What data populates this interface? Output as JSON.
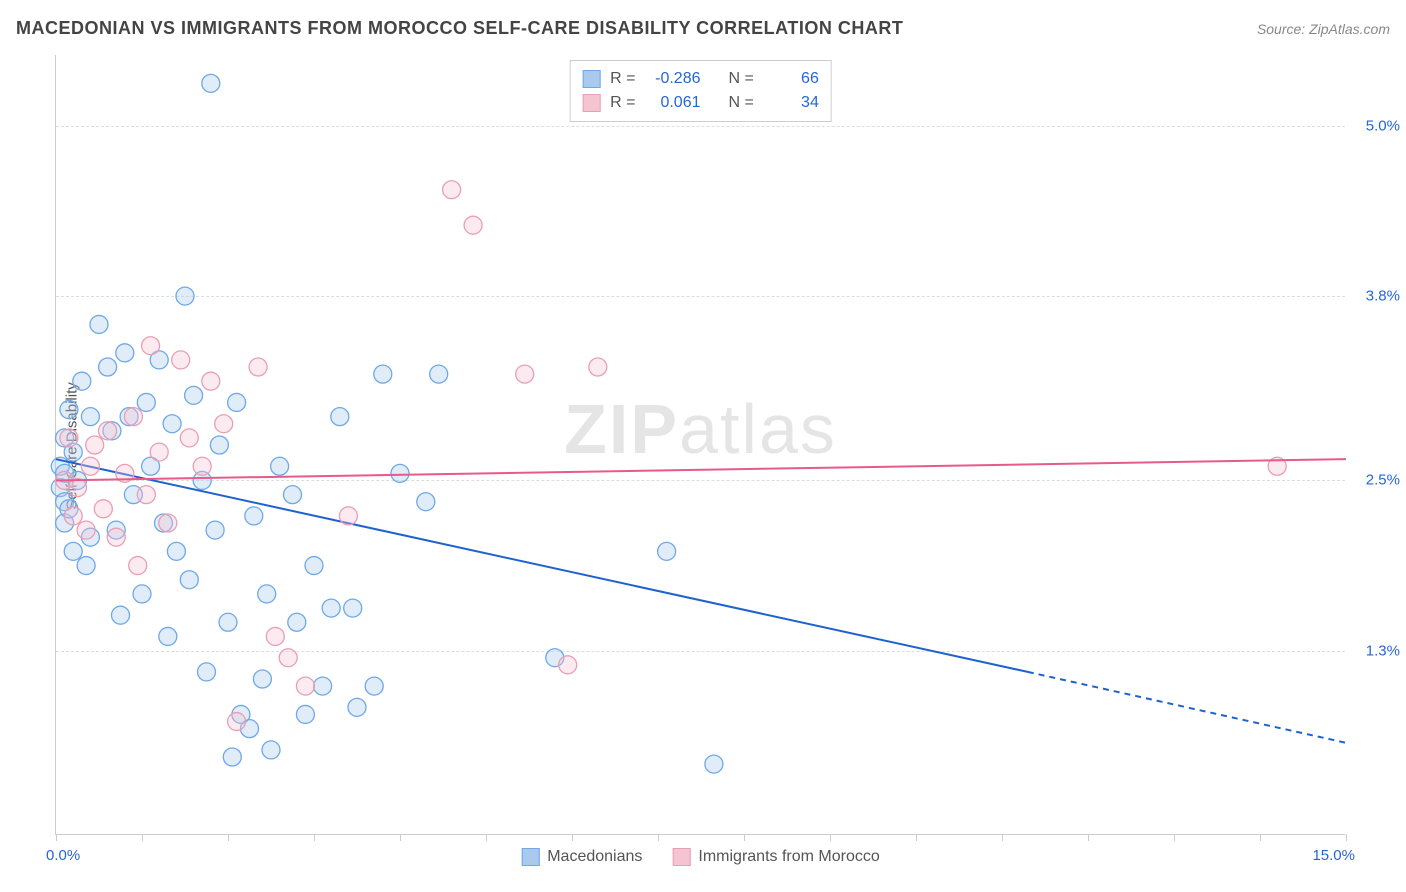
{
  "title": "MACEDONIAN VS IMMIGRANTS FROM MOROCCO SELF-CARE DISABILITY CORRELATION CHART",
  "source_label": "Source: ",
  "source_name": "ZipAtlas.com",
  "watermark": {
    "bold": "ZIP",
    "light": "atlas"
  },
  "ylabel": "Self-Care Disability",
  "chart": {
    "type": "scatter",
    "x_domain": [
      0.0,
      15.0
    ],
    "y_domain": [
      0.0,
      5.5
    ],
    "x_ticks_minor": [
      0,
      1,
      2,
      3,
      4,
      5,
      6,
      7,
      8,
      9,
      10,
      11,
      12,
      13,
      14,
      15
    ],
    "x_ticks_major_labels": [
      {
        "pos": 0.0,
        "label": "0.0%"
      },
      {
        "pos": 15.0,
        "label": "15.0%"
      }
    ],
    "y_gridlines": [
      1.3,
      2.5,
      3.8,
      5.0
    ],
    "y_tick_labels": [
      {
        "pos": 1.3,
        "label": "1.3%"
      },
      {
        "pos": 2.5,
        "label": "2.5%"
      },
      {
        "pos": 3.8,
        "label": "3.8%"
      },
      {
        "pos": 5.0,
        "label": "5.0%"
      }
    ],
    "marker_radius": 9,
    "marker_stroke_width": 1.3,
    "marker_fill_opacity": 0.35,
    "line_width": 2,
    "background_color": "#ffffff",
    "grid_color": "#dddddd",
    "axis_color": "#cccccc",
    "tick_label_color": "#2566d8",
    "label_fontsize": 15
  },
  "series": [
    {
      "name": "Macedonians",
      "color_stroke": "#6ea8e8",
      "color_fill": "#a9c9ef",
      "line_color": "#1e62d0",
      "R": "-0.286",
      "N": "66",
      "trend": {
        "x1": 0.0,
        "y1": 2.65,
        "x2_solid": 11.3,
        "y2_solid": 1.15,
        "x2": 15.0,
        "y2": 0.65
      },
      "points": [
        [
          0.05,
          2.45
        ],
        [
          0.05,
          2.6
        ],
        [
          0.1,
          2.8
        ],
        [
          0.1,
          2.55
        ],
        [
          0.1,
          2.35
        ],
        [
          0.1,
          2.2
        ],
        [
          0.15,
          3.0
        ],
        [
          0.15,
          2.3
        ],
        [
          0.2,
          2.7
        ],
        [
          0.2,
          2.0
        ],
        [
          0.25,
          2.5
        ],
        [
          0.3,
          3.2
        ],
        [
          0.35,
          1.9
        ],
        [
          0.4,
          2.1
        ],
        [
          0.4,
          2.95
        ],
        [
          0.5,
          3.6
        ],
        [
          0.6,
          3.3
        ],
        [
          0.65,
          2.85
        ],
        [
          0.7,
          2.15
        ],
        [
          0.75,
          1.55
        ],
        [
          0.8,
          3.4
        ],
        [
          0.85,
          2.95
        ],
        [
          0.9,
          2.4
        ],
        [
          1.0,
          1.7
        ],
        [
          1.05,
          3.05
        ],
        [
          1.1,
          2.6
        ],
        [
          1.2,
          3.35
        ],
        [
          1.25,
          2.2
        ],
        [
          1.3,
          1.4
        ],
        [
          1.35,
          2.9
        ],
        [
          1.4,
          2.0
        ],
        [
          1.5,
          3.8
        ],
        [
          1.55,
          1.8
        ],
        [
          1.6,
          3.1
        ],
        [
          1.7,
          2.5
        ],
        [
          1.75,
          1.15
        ],
        [
          1.8,
          5.3
        ],
        [
          1.85,
          2.15
        ],
        [
          1.9,
          2.75
        ],
        [
          2.0,
          1.5
        ],
        [
          2.05,
          0.55
        ],
        [
          2.1,
          3.05
        ],
        [
          2.15,
          0.85
        ],
        [
          2.25,
          0.75
        ],
        [
          2.3,
          2.25
        ],
        [
          2.4,
          1.1
        ],
        [
          2.45,
          1.7
        ],
        [
          2.5,
          0.6
        ],
        [
          2.6,
          2.6
        ],
        [
          2.75,
          2.4
        ],
        [
          2.8,
          1.5
        ],
        [
          2.9,
          0.85
        ],
        [
          3.0,
          1.9
        ],
        [
          3.1,
          1.05
        ],
        [
          3.2,
          1.6
        ],
        [
          3.3,
          2.95
        ],
        [
          3.45,
          1.6
        ],
        [
          3.5,
          0.9
        ],
        [
          3.7,
          1.05
        ],
        [
          3.8,
          3.25
        ],
        [
          4.0,
          2.55
        ],
        [
          4.3,
          2.35
        ],
        [
          4.45,
          3.25
        ],
        [
          7.1,
          2.0
        ],
        [
          7.65,
          0.5
        ],
        [
          5.8,
          1.25
        ]
      ]
    },
    {
      "name": "Immigrants from Morocco",
      "color_stroke": "#e89fb4",
      "color_fill": "#f4c4d2",
      "line_color": "#e75a8c",
      "R": "0.061",
      "N": "34",
      "trend": {
        "x1": 0.0,
        "y1": 2.5,
        "x2_solid": 15.0,
        "y2_solid": 2.65,
        "x2": 15.0,
        "y2": 2.65
      },
      "points": [
        [
          0.1,
          2.5
        ],
        [
          0.15,
          2.8
        ],
        [
          0.2,
          2.25
        ],
        [
          0.25,
          2.45
        ],
        [
          0.35,
          2.15
        ],
        [
          0.4,
          2.6
        ],
        [
          0.45,
          2.75
        ],
        [
          0.55,
          2.3
        ],
        [
          0.6,
          2.85
        ],
        [
          0.7,
          2.1
        ],
        [
          0.8,
          2.55
        ],
        [
          0.9,
          2.95
        ],
        [
          0.95,
          1.9
        ],
        [
          1.05,
          2.4
        ],
        [
          1.1,
          3.45
        ],
        [
          1.2,
          2.7
        ],
        [
          1.3,
          2.2
        ],
        [
          1.45,
          3.35
        ],
        [
          1.55,
          2.8
        ],
        [
          1.7,
          2.6
        ],
        [
          1.8,
          3.2
        ],
        [
          1.95,
          2.9
        ],
        [
          2.1,
          0.8
        ],
        [
          2.35,
          3.3
        ],
        [
          2.55,
          1.4
        ],
        [
          2.7,
          1.25
        ],
        [
          2.9,
          1.05
        ],
        [
          3.4,
          2.25
        ],
        [
          4.6,
          4.55
        ],
        [
          4.85,
          4.3
        ],
        [
          5.45,
          3.25
        ],
        [
          5.95,
          1.2
        ],
        [
          6.3,
          3.3
        ],
        [
          14.2,
          2.6
        ]
      ]
    }
  ],
  "stats_legend": {
    "R_prefix": "R = ",
    "N_prefix": "N = "
  },
  "bottom_legend_labels": [
    "Macedonians",
    "Immigrants from Morocco"
  ]
}
